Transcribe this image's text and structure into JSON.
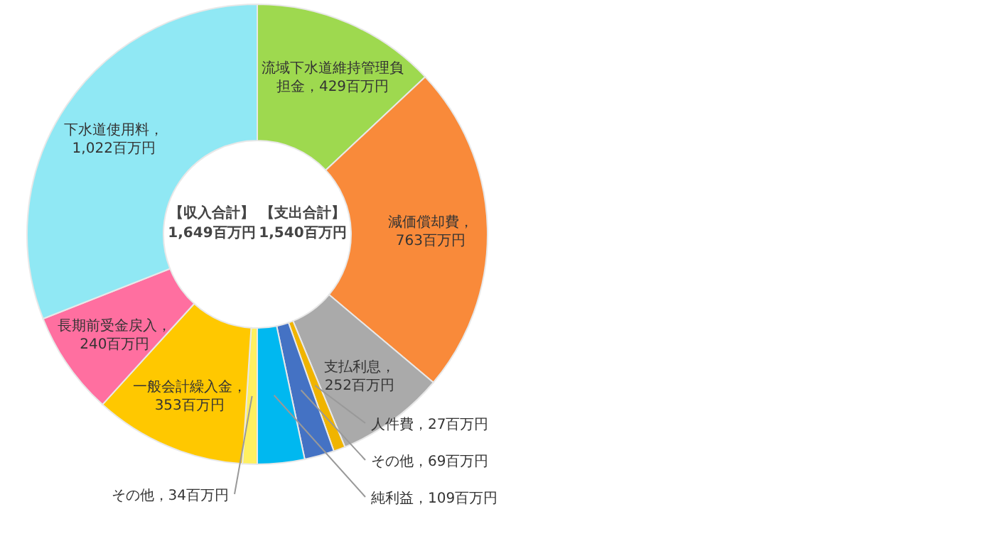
{
  "chart_data": {
    "type": "donut",
    "categories": [
      "流域下水道維持管理負担金",
      "減価償却費",
      "支払利息",
      "人件費",
      "その他",
      "純利益",
      "その他",
      "一般会計繰入金",
      "長期前受金戻入",
      "下水道使用料"
    ],
    "values": [
      429,
      763,
      252,
      27,
      69,
      109,
      34,
      353,
      240,
      1022
    ],
    "colors": [
      "#9ed94f",
      "#f98a3a",
      "#aaaaaa",
      "#f0b400",
      "#4472c4",
      "#00b8f0",
      "#fff060",
      "#ffc800",
      "#ff6fa0",
      "#90e8f4"
    ],
    "value_labels": [
      "，429百万円",
      "，763百万円",
      "，252百万円",
      "，27百万円",
      "，69百万円",
      "，109百万円",
      "，34百万円",
      "，353百万円",
      "，240百万円",
      "，1,022百万円"
    ],
    "annotations": [
      "【収入合計】 1,649百万円",
      "【支出合計】 1,540百万円"
    ]
  }
}
